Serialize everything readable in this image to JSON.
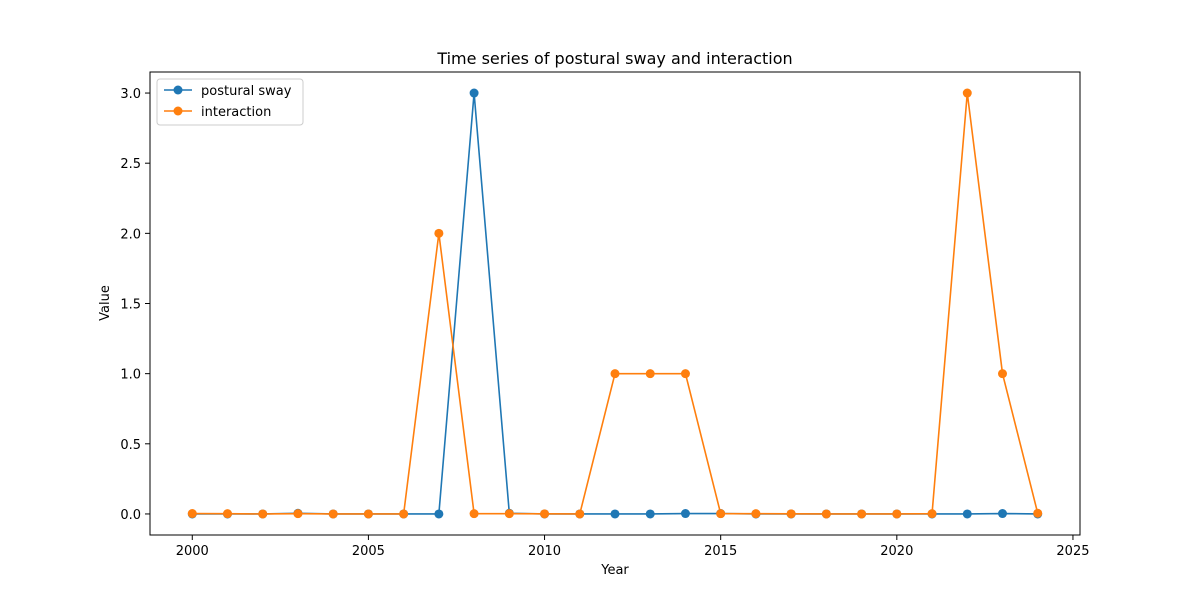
{
  "chart_data": {
    "type": "line",
    "title": "Time series of postural sway and interaction",
    "xlabel": "Year",
    "ylabel": "Value",
    "x": [
      2000,
      2001,
      2002,
      2003,
      2004,
      2005,
      2006,
      2007,
      2008,
      2009,
      2010,
      2011,
      2012,
      2013,
      2014,
      2015,
      2016,
      2017,
      2018,
      2019,
      2020,
      2021,
      2022,
      2023,
      2024
    ],
    "series": [
      {
        "name": "postural sway",
        "color": "#1f77b4",
        "values": [
          0.0,
          0.0,
          0.0,
          0.005,
          0.0,
          0.0,
          0.0,
          0.0,
          3.0,
          0.005,
          0.0,
          0.0,
          0.0,
          0.0,
          0.003,
          0.003,
          0.0,
          0.0,
          0.0,
          0.0,
          0.0,
          0.0,
          0.0,
          0.003,
          0.0
        ]
      },
      {
        "name": "interaction",
        "color": "#ff7f0e",
        "values": [
          0.003,
          0.002,
          0.0,
          0.002,
          0.0,
          0.0,
          0.0,
          2.0,
          0.002,
          0.002,
          0.001,
          0.0,
          1.0,
          1.0,
          1.0,
          0.002,
          0.002,
          0.001,
          0.0,
          0.0,
          0.0,
          0.002,
          3.0,
          1.0,
          0.005
        ]
      }
    ],
    "xlim": [
      1998.8,
      2025.2
    ],
    "ylim": [
      -0.15,
      3.15
    ],
    "xticks": [
      2000,
      2005,
      2010,
      2015,
      2020,
      2025
    ],
    "yticks": [
      "0.0",
      "0.5",
      "1.0",
      "1.5",
      "2.0",
      "2.5",
      "3.0"
    ],
    "grid": false,
    "legend": "top-left"
  }
}
